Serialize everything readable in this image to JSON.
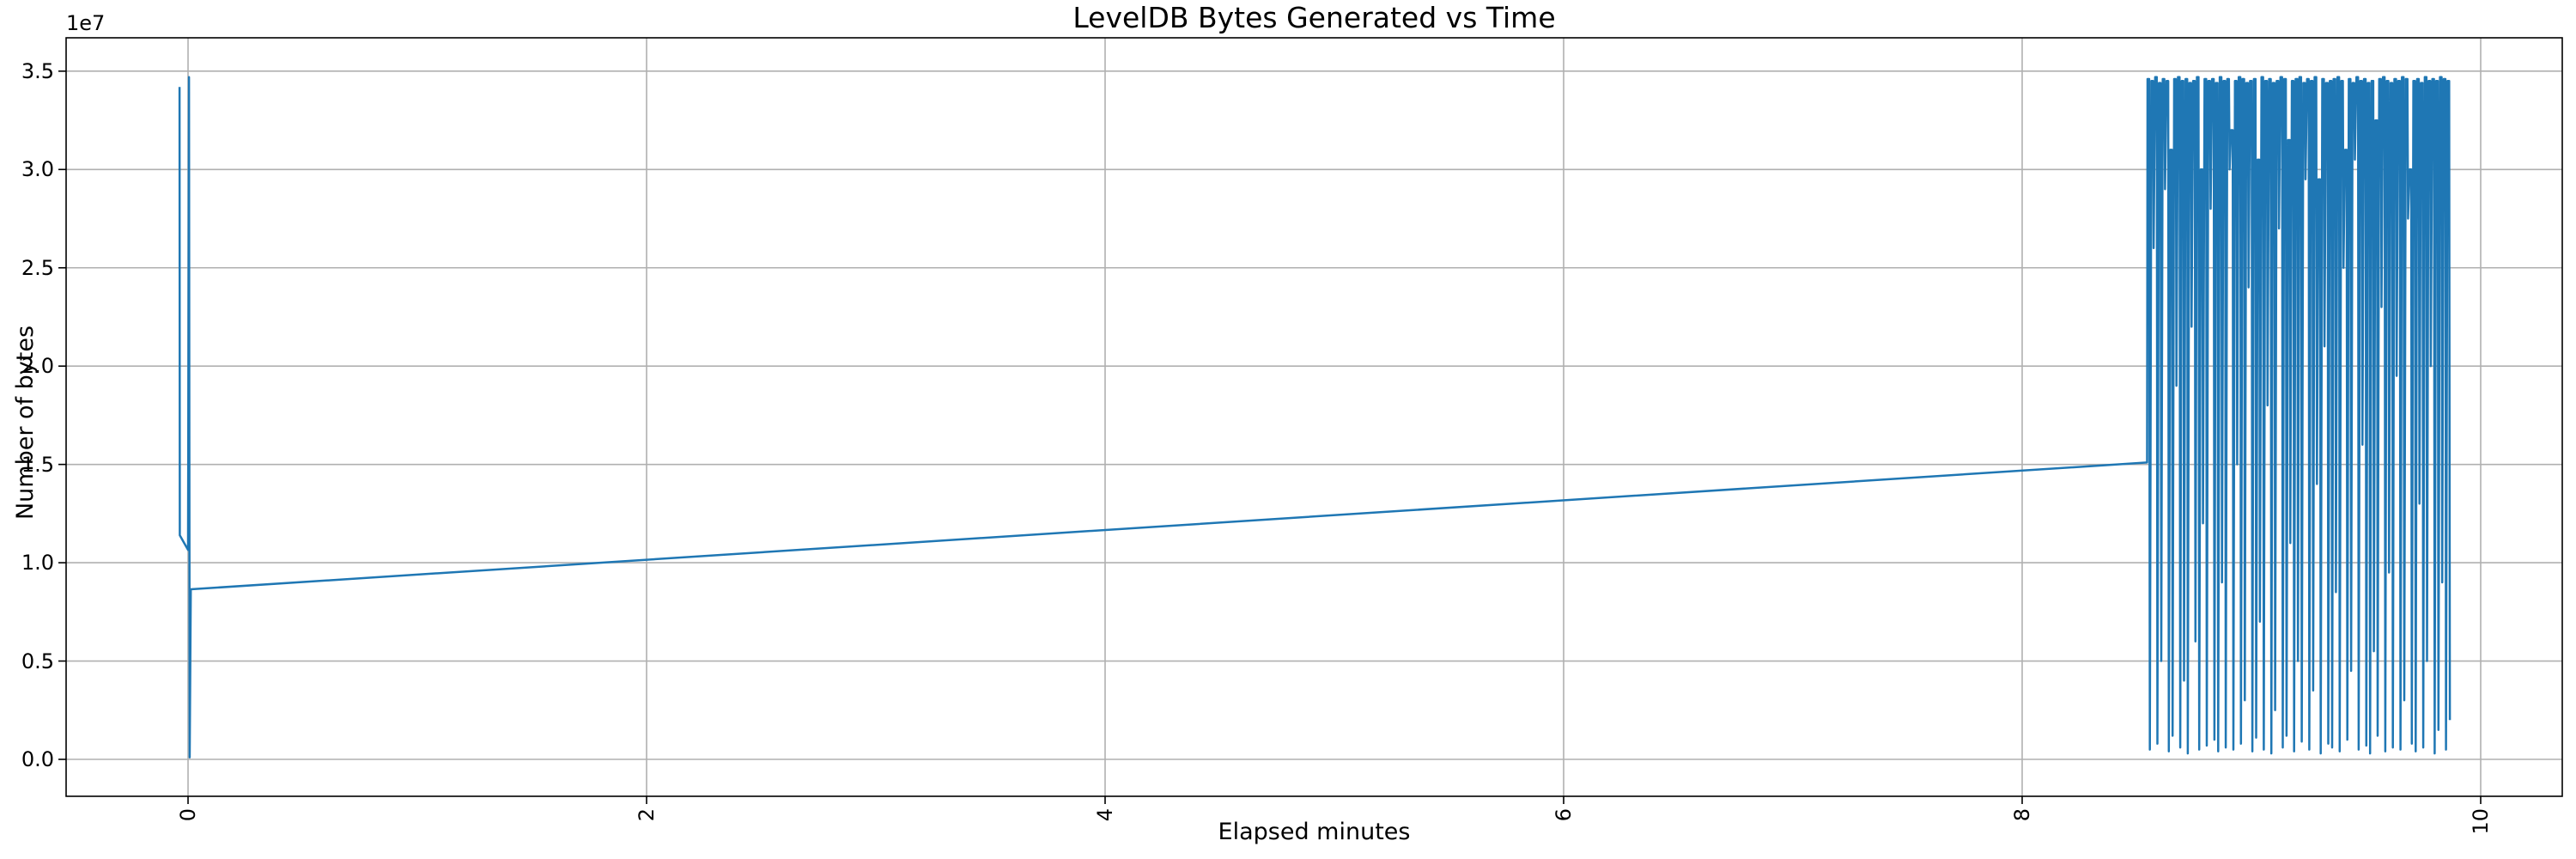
{
  "title": "LevelDB Bytes Generated vs Time",
  "x_axis": {
    "label": "Elapsed minutes",
    "tick_labels": [
      "0",
      "2",
      "4",
      "6",
      "8",
      "10"
    ],
    "tick_values": [
      0,
      2,
      4,
      6,
      8,
      10
    ]
  },
  "y_axis": {
    "label": "Number of bytes",
    "offset_text": "1e7",
    "tick_labels": [
      "0.0",
      "0.5",
      "1.0",
      "1.5",
      "2.0",
      "2.5",
      "3.0",
      "3.5"
    ],
    "tick_values_1e7": [
      0.0,
      0.5,
      1.0,
      1.5,
      2.0,
      2.5,
      3.0,
      3.5
    ]
  },
  "colors": {
    "line": "#1f77b4",
    "grid": "#b0b0b0",
    "spine": "#000000",
    "text": "#000000",
    "background": "#ffffff"
  },
  "chart_data": {
    "type": "line",
    "title": "LevelDB Bytes Generated vs Time",
    "xlabel": "Elapsed minutes",
    "ylabel": "Number of bytes",
    "y_unit_note": "y values are in units of 1e7 bytes (axis offset text 1e7)",
    "xlim": [
      -0.53,
      10.36
    ],
    "ylim_1e7": [
      -0.19,
      3.67
    ],
    "grid": true,
    "legend": false,
    "series_name": "bytes generated",
    "main_line_points_1e7": [
      [
        -0.037,
        3.42
      ],
      [
        -0.036,
        1.14
      ],
      [
        0.0,
        1.065
      ],
      [
        0.004,
        3.47
      ],
      [
        0.007,
        0.01
      ],
      [
        0.012,
        0.865
      ],
      [
        8.545,
        1.51
      ]
    ],
    "oscillation": {
      "description": "dense square-wave-like oscillation between ~3.46e7 flat tops and variable lows",
      "x_start": 8.545,
      "x_end": 9.87,
      "cycles": 80,
      "tops_1e7": [
        3.46,
        3.45,
        3.47,
        3.44,
        3.46,
        3.45,
        3.1,
        3.46,
        3.47,
        3.45,
        3.46,
        3.44,
        3.45,
        3.47,
        3.0,
        3.46,
        3.45,
        3.46,
        3.44,
        3.47,
        3.45,
        3.46,
        3.2,
        3.45,
        3.47,
        3.46,
        3.44,
        3.45,
        3.46,
        3.05,
        3.47,
        3.45,
        3.46,
        3.44,
        3.45,
        3.47,
        3.46,
        3.15,
        3.45,
        3.46,
        3.47,
        3.44,
        3.46,
        3.45,
        3.47,
        2.95,
        3.46,
        3.44,
        3.45,
        3.46,
        3.47,
        3.45,
        3.1,
        3.46,
        3.44,
        3.47,
        3.45,
        3.46,
        3.44,
        3.45,
        3.25,
        3.46,
        3.47,
        3.45,
        3.44,
        3.46,
        3.45,
        3.47,
        3.46,
        3.0,
        3.45,
        3.46,
        3.44,
        3.47,
        3.45,
        3.46,
        3.45,
        3.47,
        3.46,
        3.45
      ],
      "lows_1e7": [
        0.05,
        2.6,
        0.08,
        0.5,
        2.9,
        0.04,
        0.12,
        1.9,
        0.06,
        0.4,
        0.03,
        2.2,
        0.6,
        0.05,
        1.2,
        0.07,
        2.8,
        0.1,
        0.04,
        0.9,
        0.06,
        3.0,
        0.05,
        1.5,
        0.08,
        0.3,
        2.4,
        0.04,
        0.11,
        0.7,
        0.05,
        1.8,
        0.03,
        0.25,
        2.7,
        0.06,
        0.12,
        1.1,
        0.04,
        0.5,
        0.09,
        2.95,
        0.05,
        0.35,
        1.4,
        0.03,
        2.1,
        0.08,
        0.06,
        0.85,
        0.04,
        2.5,
        0.1,
        0.45,
        3.05,
        0.05,
        1.6,
        0.07,
        0.03,
        0.55,
        0.12,
        2.3,
        0.04,
        0.95,
        0.06,
        1.95,
        0.05,
        0.3,
        2.75,
        0.08,
        0.04,
        1.3,
        0.06,
        0.5,
        2.0,
        0.03,
        0.15,
        0.9,
        0.05,
        0.2
      ]
    }
  }
}
